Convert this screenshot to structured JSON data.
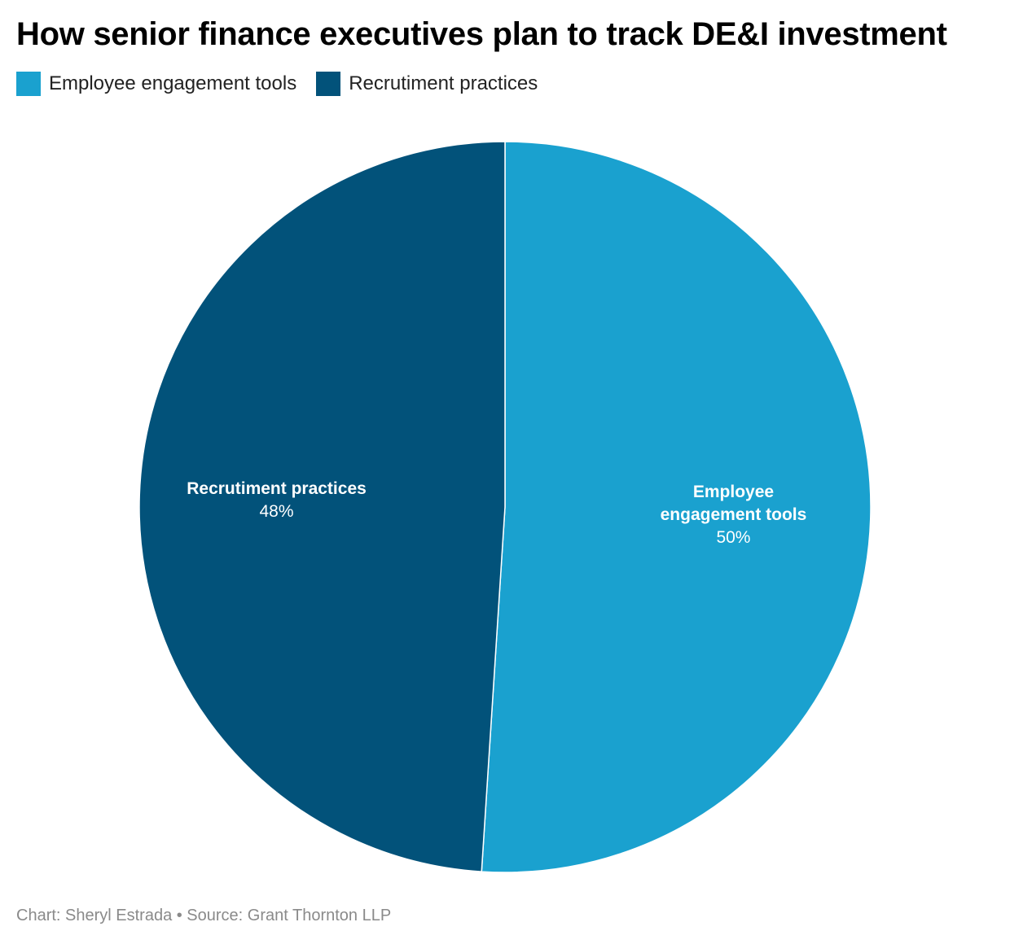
{
  "title": "How senior finance executives plan to track DE&I investment",
  "legend": [
    {
      "label": "Employee engagement tools",
      "color": "#1aa1cf"
    },
    {
      "label": "Recrutiment practices",
      "color": "#02527a"
    }
  ],
  "chart_data": {
    "type": "pie",
    "title": "How senior finance executives plan to track DE&I investment",
    "slices": [
      {
        "name": "Employee engagement tools",
        "label_lines": [
          "Employee",
          "engagement tools"
        ],
        "value": 50,
        "value_label": "50%",
        "color": "#1aa1cf"
      },
      {
        "name": "Recrutiment practices",
        "label_lines": [
          "Recrutiment practices"
        ],
        "value": 48,
        "value_label": "48%",
        "color": "#02527a"
      }
    ],
    "legend_position": "top-left",
    "start_angle": "12 o'clock",
    "direction": "clockwise"
  },
  "footer": {
    "text": "Chart: Sheryl Estrada • Source: Grant Thornton LLP"
  }
}
